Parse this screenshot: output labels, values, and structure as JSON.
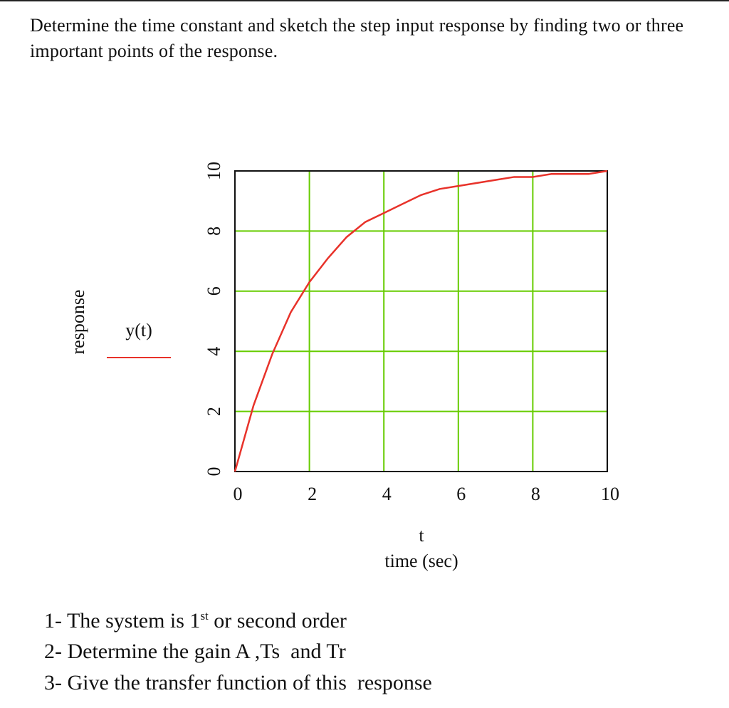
{
  "header": {
    "title": "Determine the time constant and sketch the step input response by finding two or three important points of the response."
  },
  "chart_data": {
    "type": "line",
    "y_label": "response",
    "x_variable": "t",
    "x_label": "time (sec)",
    "x": [
      0,
      0.5,
      1,
      1.5,
      2,
      2.5,
      3,
      3.5,
      4,
      4.5,
      5,
      5.5,
      6,
      6.5,
      7,
      7.5,
      8,
      8.5,
      9,
      9.5,
      10
    ],
    "series": [
      {
        "name": "y(t)",
        "color": "#e8322a",
        "values": [
          0,
          2.2,
          3.9,
          5.3,
          6.3,
          7.1,
          7.8,
          8.3,
          8.6,
          8.9,
          9.2,
          9.4,
          9.5,
          9.6,
          9.7,
          9.8,
          9.8,
          9.9,
          9.9,
          9.9,
          10
        ]
      }
    ],
    "xlim": [
      0,
      10
    ],
    "ylim": [
      0,
      10
    ],
    "xticks": [
      0,
      2,
      4,
      6,
      8,
      10
    ],
    "yticks": [
      0,
      2,
      4,
      6,
      8,
      10
    ],
    "grid": true,
    "grid_color": "#66cc00"
  },
  "questions": [
    {
      "text": "1- The system is 1",
      "sup": "st",
      "rest": " or second order"
    },
    {
      "text": "2- Determine the gain A ,Ts  and Tr"
    },
    {
      "text": "3- Give the transfer function of this  response"
    }
  ]
}
